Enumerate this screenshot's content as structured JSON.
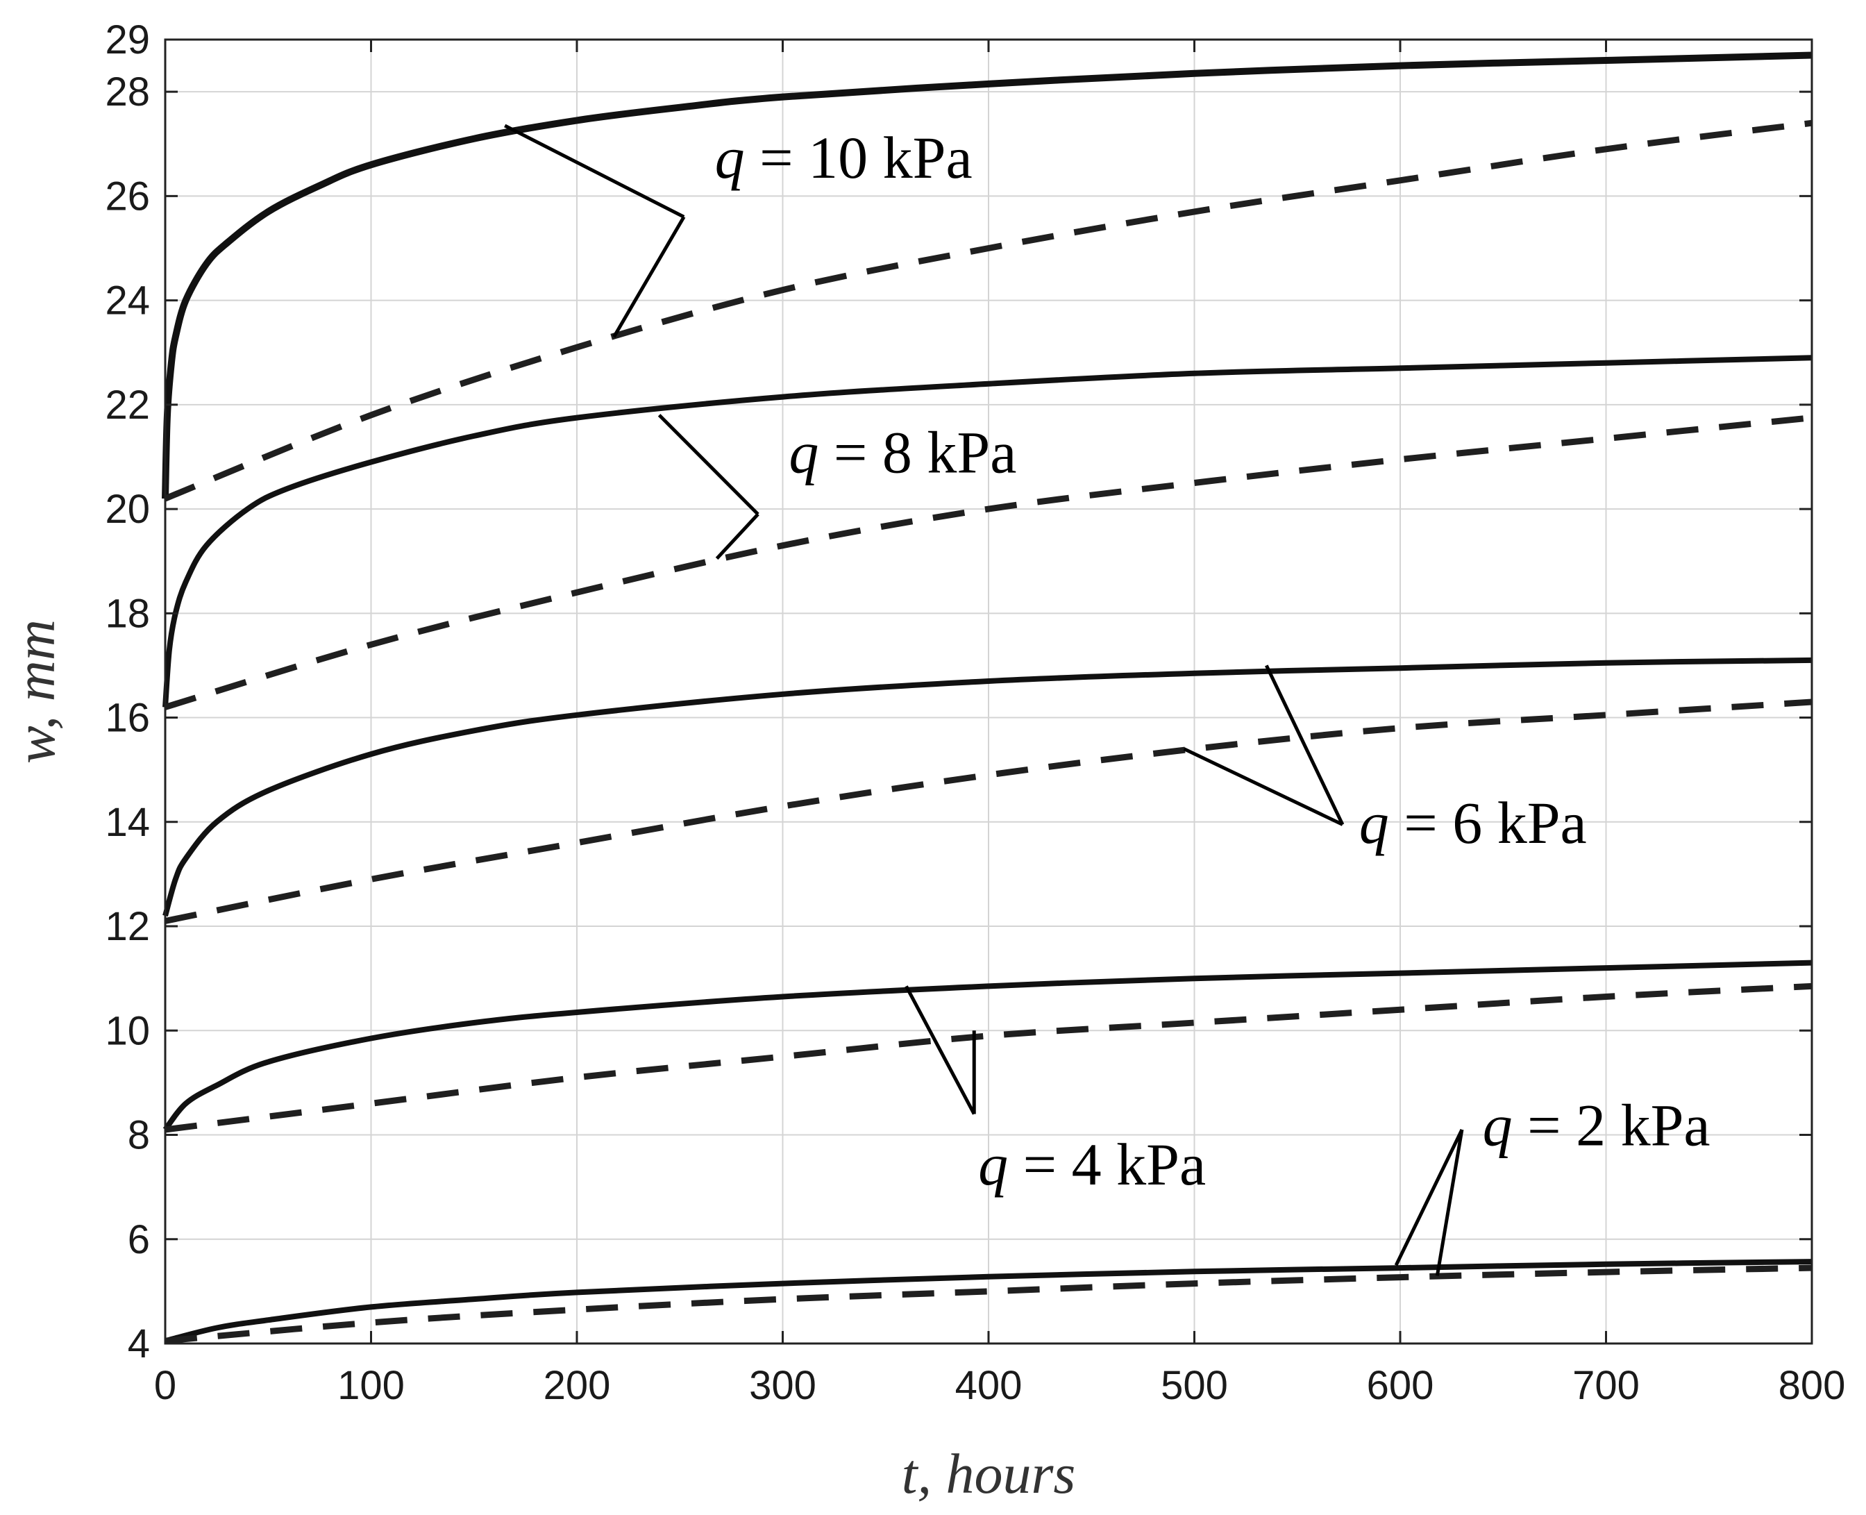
{
  "chart_data": {
    "type": "line",
    "title": "",
    "xlabel": "t, hours",
    "ylabel": "w, mm",
    "xlim": [
      0,
      800
    ],
    "ylim": [
      4,
      29
    ],
    "x_ticks": [
      0,
      100,
      200,
      300,
      400,
      500,
      600,
      700,
      800
    ],
    "y_ticks": [
      4,
      6,
      8,
      10,
      12,
      14,
      16,
      18,
      20,
      22,
      24,
      26,
      28,
      29
    ],
    "grid": true,
    "legend": "none",
    "series": [
      {
        "load": "q = 10 kPa",
        "style": "solid",
        "points": [
          [
            0,
            20.2
          ],
          [
            1,
            21.8
          ],
          [
            3,
            22.8
          ],
          [
            5,
            23.3
          ],
          [
            10,
            24.0
          ],
          [
            20,
            24.7
          ],
          [
            30,
            25.1
          ],
          [
            50,
            25.7
          ],
          [
            75,
            26.2
          ],
          [
            100,
            26.6
          ],
          [
            150,
            27.1
          ],
          [
            200,
            27.45
          ],
          [
            250,
            27.7
          ],
          [
            300,
            27.9
          ],
          [
            400,
            28.15
          ],
          [
            500,
            28.35
          ],
          [
            600,
            28.5
          ],
          [
            700,
            28.6
          ],
          [
            800,
            28.7
          ]
        ]
      },
      {
        "load": "q = 10 kPa",
        "style": "dashed",
        "points": [
          [
            0,
            20.2
          ],
          [
            100,
            21.8
          ],
          [
            200,
            23.1
          ],
          [
            300,
            24.2
          ],
          [
            400,
            25.0
          ],
          [
            500,
            25.7
          ],
          [
            600,
            26.3
          ],
          [
            700,
            26.9
          ],
          [
            800,
            27.4
          ]
        ]
      },
      {
        "load": "q = 8 kPa",
        "style": "solid",
        "points": [
          [
            0,
            16.2
          ],
          [
            2,
            17.3
          ],
          [
            5,
            18.0
          ],
          [
            10,
            18.6
          ],
          [
            20,
            19.3
          ],
          [
            40,
            20.0
          ],
          [
            60,
            20.4
          ],
          [
            100,
            20.9
          ],
          [
            150,
            21.4
          ],
          [
            200,
            21.75
          ],
          [
            300,
            22.15
          ],
          [
            400,
            22.4
          ],
          [
            500,
            22.6
          ],
          [
            600,
            22.7
          ],
          [
            700,
            22.8
          ],
          [
            800,
            22.9
          ]
        ]
      },
      {
        "load": "q = 8 kPa",
        "style": "dashed",
        "points": [
          [
            0,
            16.2
          ],
          [
            100,
            17.4
          ],
          [
            200,
            18.4
          ],
          [
            300,
            19.3
          ],
          [
            400,
            20.0
          ],
          [
            500,
            20.5
          ],
          [
            600,
            20.95
          ],
          [
            700,
            21.35
          ],
          [
            800,
            21.75
          ]
        ]
      },
      {
        "load": "q = 6 kPa",
        "style": "solid",
        "points": [
          [
            0,
            12.2
          ],
          [
            5,
            12.9
          ],
          [
            10,
            13.3
          ],
          [
            25,
            14.0
          ],
          [
            50,
            14.6
          ],
          [
            100,
            15.3
          ],
          [
            150,
            15.75
          ],
          [
            200,
            16.05
          ],
          [
            300,
            16.45
          ],
          [
            400,
            16.7
          ],
          [
            500,
            16.85
          ],
          [
            600,
            16.95
          ],
          [
            700,
            17.05
          ],
          [
            800,
            17.1
          ]
        ]
      },
      {
        "load": "q = 6 kPa",
        "style": "dashed",
        "points": [
          [
            0,
            12.1
          ],
          [
            100,
            12.9
          ],
          [
            200,
            13.6
          ],
          [
            300,
            14.3
          ],
          [
            400,
            14.9
          ],
          [
            500,
            15.4
          ],
          [
            600,
            15.8
          ],
          [
            700,
            16.05
          ],
          [
            800,
            16.3
          ]
        ]
      },
      {
        "load": "q = 4 kPa",
        "style": "solid",
        "points": [
          [
            0,
            8.1
          ],
          [
            10,
            8.6
          ],
          [
            25,
            8.95
          ],
          [
            50,
            9.4
          ],
          [
            100,
            9.85
          ],
          [
            150,
            10.15
          ],
          [
            200,
            10.35
          ],
          [
            300,
            10.65
          ],
          [
            400,
            10.85
          ],
          [
            500,
            11.0
          ],
          [
            600,
            11.1
          ],
          [
            700,
            11.2
          ],
          [
            800,
            11.3
          ]
        ]
      },
      {
        "load": "q = 4 kPa",
        "style": "dashed",
        "points": [
          [
            0,
            8.1
          ],
          [
            100,
            8.6
          ],
          [
            200,
            9.1
          ],
          [
            300,
            9.5
          ],
          [
            400,
            9.9
          ],
          [
            500,
            10.15
          ],
          [
            600,
            10.4
          ],
          [
            700,
            10.65
          ],
          [
            800,
            10.85
          ]
        ]
      },
      {
        "load": "q = 2 kPa",
        "style": "solid",
        "points": [
          [
            0,
            4.05
          ],
          [
            25,
            4.3
          ],
          [
            50,
            4.45
          ],
          [
            100,
            4.7
          ],
          [
            150,
            4.85
          ],
          [
            200,
            4.98
          ],
          [
            300,
            5.15
          ],
          [
            400,
            5.28
          ],
          [
            500,
            5.38
          ],
          [
            600,
            5.45
          ],
          [
            700,
            5.52
          ],
          [
            800,
            5.57
          ]
        ]
      },
      {
        "load": "q = 2 kPa",
        "style": "dashed",
        "points": [
          [
            0,
            4.05
          ],
          [
            100,
            4.4
          ],
          [
            200,
            4.65
          ],
          [
            300,
            4.85
          ],
          [
            400,
            5.0
          ],
          [
            500,
            5.15
          ],
          [
            600,
            5.27
          ],
          [
            700,
            5.37
          ],
          [
            800,
            5.45
          ]
        ]
      }
    ],
    "annotations": [
      {
        "q": "q",
        "rest": " = 10 kPa",
        "text_at": [
          267,
          26.35
        ],
        "leader_from": [
          252,
          25.6
        ],
        "leaders_to": [
          [
            165,
            27.35
          ],
          [
            218,
            23.3
          ]
        ]
      },
      {
        "q": "q",
        "rest": " = 8 kPa",
        "text_at": [
          303,
          20.7
        ],
        "leader_from": [
          288,
          19.9
        ],
        "leaders_to": [
          [
            240,
            21.8
          ],
          [
            268,
            19.05
          ]
        ]
      },
      {
        "q": "q",
        "rest": " = 6 kPa",
        "text_at": [
          580,
          13.6
        ],
        "leader_from": [
          572,
          13.95
        ],
        "leaders_to": [
          [
            535,
            17.0
          ],
          [
            495,
            15.4
          ]
        ]
      },
      {
        "q": "q",
        "rest": " = 4 kPa",
        "text_at": [
          395,
          7.05
        ],
        "leader_from": [
          393,
          8.4
        ],
        "leaders_to": [
          [
            360,
            10.85
          ],
          [
            393,
            10.0
          ]
        ]
      },
      {
        "q": "q",
        "rest": " = 2 kPa",
        "text_at": [
          640,
          7.8
        ],
        "leader_from": [
          630,
          8.1
        ],
        "leaders_to": [
          [
            598,
            5.5
          ],
          [
            618,
            5.3
          ]
        ]
      }
    ]
  }
}
